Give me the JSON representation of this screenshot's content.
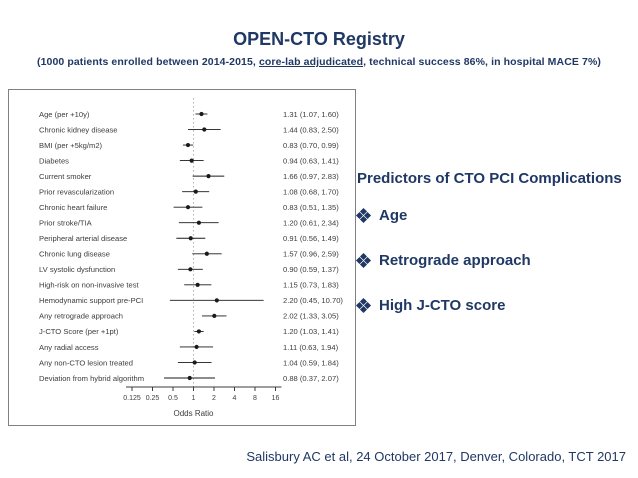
{
  "slide": {
    "title": "OPEN-CTO Registry",
    "subtitle_part1": "(1000 patients enrolled between 2014-2015,  ",
    "subtitle_underlined": "core-lab adjudicated",
    "subtitle_part2": ", technical success 86%, in hospital MACE 7%)",
    "citation": "Salisbury AC et al, 24 October 2017, Denver, Colorado, TCT 2017"
  },
  "predictors_panel": {
    "heading": "Predictors of CTO PCI Complications",
    "bullets": [
      "Age",
      "Retrograde approach",
      "High J-CTO score"
    ]
  },
  "colors": {
    "navy": "#1f3864",
    "plot_text": "#3c3c3c",
    "marker": "#1a1a1a",
    "ref_line": "#b3b3b3",
    "plot_border": "#808080"
  },
  "chart_data": {
    "type": "forest",
    "xlabel": "Odds Ratio",
    "x_scale": "log2",
    "x_ticks": [
      "0.125",
      "0.25",
      "0.5",
      "1",
      "2",
      "4",
      "8",
      "16"
    ],
    "xlim": [
      0.125,
      16
    ],
    "reference_line": 1,
    "grid": false,
    "rows": [
      {
        "label": "Age (per +10y)",
        "or": 1.31,
        "low": 1.07,
        "high": 1.6,
        "display": "1.31 (1.07, 1.60)"
      },
      {
        "label": "Chronic kidney disease",
        "or": 1.44,
        "low": 0.83,
        "high": 2.5,
        "display": "1.44 (0.83, 2.50)"
      },
      {
        "label": "BMI (per +5kg/m2)",
        "or": 0.83,
        "low": 0.7,
        "high": 0.99,
        "display": "0.83 (0.70, 0.99)"
      },
      {
        "label": "Diabetes",
        "or": 0.94,
        "low": 0.63,
        "high": 1.41,
        "display": "0.94 (0.63, 1.41)"
      },
      {
        "label": "Current smoker",
        "or": 1.66,
        "low": 0.97,
        "high": 2.83,
        "display": "1.66 (0.97, 2.83)"
      },
      {
        "label": "Prior revascularization",
        "or": 1.08,
        "low": 0.68,
        "high": 1.7,
        "display": "1.08 (0.68, 1.70)"
      },
      {
        "label": "Chronic heart failure",
        "or": 0.83,
        "low": 0.51,
        "high": 1.35,
        "display": "0.83 (0.51, 1.35)"
      },
      {
        "label": "Prior stroke/TIA",
        "or": 1.2,
        "low": 0.61,
        "high": 2.34,
        "display": "1.20 (0.61, 2.34)"
      },
      {
        "label": "Peripheral arterial disease",
        "or": 0.91,
        "low": 0.56,
        "high": 1.49,
        "display": "0.91 (0.56, 1.49)"
      },
      {
        "label": "Chronic lung disease",
        "or": 1.57,
        "low": 0.96,
        "high": 2.59,
        "display": "1.57 (0.96, 2.59)"
      },
      {
        "label": "LV systolic dysfunction",
        "or": 0.9,
        "low": 0.59,
        "high": 1.37,
        "display": "0.90 (0.59, 1.37)"
      },
      {
        "label": "High-risk on non-invasive test",
        "or": 1.15,
        "low": 0.73,
        "high": 1.83,
        "display": "1.15 (0.73, 1.83)"
      },
      {
        "label": "Hemodynamic support pre-PCI",
        "or": 2.2,
        "low": 0.45,
        "high": 10.7,
        "display": "2.20 (0.45, 10.70)"
      },
      {
        "label": "Any retrograde approach",
        "or": 2.02,
        "low": 1.33,
        "high": 3.05,
        "display": "2.02 (1.33, 3.05)"
      },
      {
        "label": "J-CTO Score (per +1pt)",
        "or": 1.2,
        "low": 1.03,
        "high": 1.41,
        "display": "1.20 (1.03, 1.41)"
      },
      {
        "label": "Any radial access",
        "or": 1.11,
        "low": 0.63,
        "high": 1.94,
        "display": "1.11 (0.63, 1.94)"
      },
      {
        "label": "Any non-CTO lesion treated",
        "or": 1.04,
        "low": 0.59,
        "high": 1.84,
        "display": "1.04 (0.59, 1.84)"
      },
      {
        "label": "Deviation from hybrid algorithm",
        "or": 0.88,
        "low": 0.37,
        "high": 2.07,
        "display": "0.88 (0.37, 2.07)"
      }
    ]
  }
}
